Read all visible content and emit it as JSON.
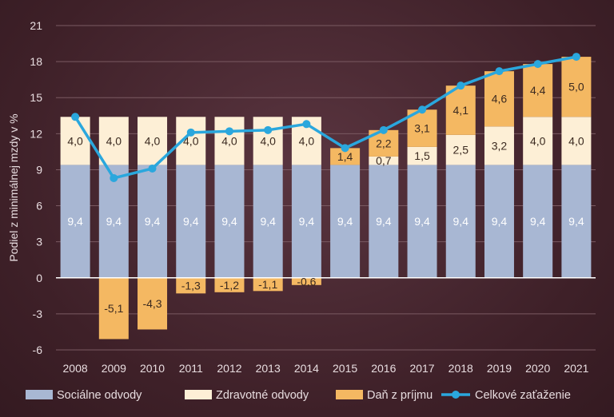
{
  "chart_data": {
    "type": "bar",
    "stacked": true,
    "categories": [
      "2008",
      "2009",
      "2010",
      "2011",
      "2012",
      "2013",
      "2014",
      "2015",
      "2016",
      "2017",
      "2018",
      "2019",
      "2020",
      "2021"
    ],
    "ylabel": "Podiel z minimálnej mzdy v %",
    "ylim": [
      -6,
      21
    ],
    "yticks": [
      -6,
      -3,
      0,
      3,
      6,
      9,
      12,
      15,
      18,
      21
    ],
    "grid": true,
    "legend_position": "bottom",
    "series": [
      {
        "name": "Sociálne odvody",
        "color": "#a8b7d3",
        "values": [
          9.4,
          9.4,
          9.4,
          9.4,
          9.4,
          9.4,
          9.4,
          9.4,
          9.4,
          9.4,
          9.4,
          9.4,
          9.4,
          9.4
        ],
        "labels": [
          "9,4",
          "9,4",
          "9,4",
          "9,4",
          "9,4",
          "9,4",
          "9,4",
          "9,4",
          "9,4",
          "9,4",
          "9,4",
          "9,4",
          "9,4",
          "9,4"
        ]
      },
      {
        "name": "Zdravotné odvody",
        "color": "#fdefd6",
        "values": [
          4.0,
          4.0,
          4.0,
          4.0,
          4.0,
          4.0,
          4.0,
          0,
          0.7,
          1.5,
          2.5,
          3.2,
          4.0,
          4.0
        ],
        "labels": [
          "4,0",
          "4,0",
          "4,0",
          "4,0",
          "4,0",
          "4,0",
          "4,0",
          "",
          "0,7",
          "1,5",
          "2,5",
          "3,2",
          "4,0",
          "4,0"
        ]
      },
      {
        "name": "Daň z príjmu",
        "color": "#f4b862",
        "values": [
          0,
          -5.1,
          -4.3,
          -1.3,
          -1.2,
          -1.1,
          -0.6,
          1.4,
          2.2,
          3.1,
          4.1,
          4.6,
          4.4,
          5.0
        ],
        "labels": [
          "",
          "-5,1",
          "-4,3",
          "-1,3",
          "-1,2",
          "-1,1",
          "-0,6",
          "1,4",
          "2,2",
          "3,1",
          "4,1",
          "4,6",
          "4,4",
          "5,0"
        ]
      }
    ],
    "line": {
      "name": "Celkové zaťaženie",
      "color": "#2aa7dd",
      "values": [
        13.4,
        8.3,
        9.1,
        12.1,
        12.2,
        12.3,
        12.8,
        10.8,
        12.3,
        14.0,
        16.0,
        17.2,
        17.8,
        18.4
      ]
    }
  }
}
